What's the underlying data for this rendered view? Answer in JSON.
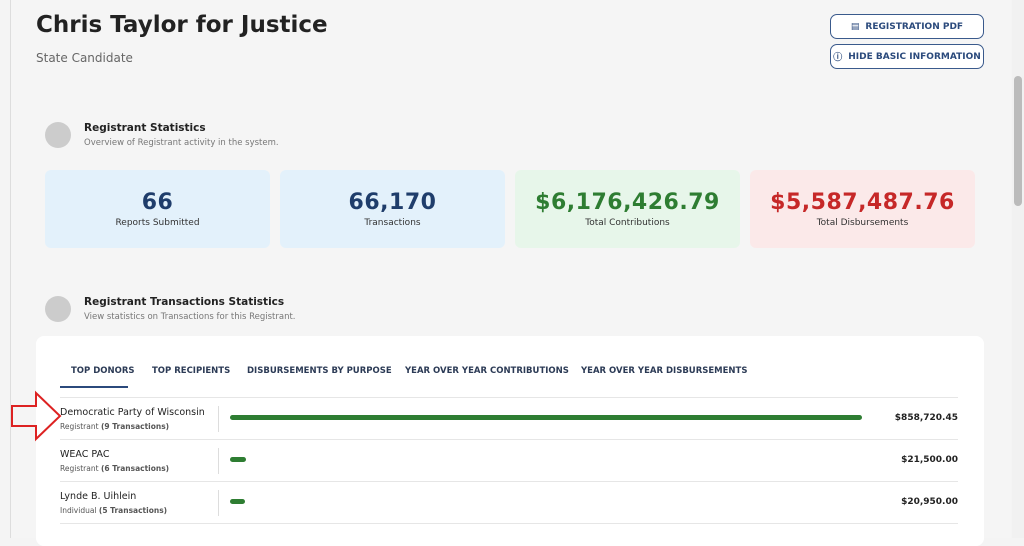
{
  "header": {
    "title": "Chris Taylor for Justice",
    "subtitle": "State Candidate",
    "buttons": [
      "REGISTRATION PDF",
      "HIDE BASIC INFORMATION"
    ]
  },
  "stats_section": {
    "title": "Registrant Statistics",
    "description": "Overview of Registrant activity in the system.",
    "cards": [
      {
        "value": "66",
        "label": "Reports Submitted"
      },
      {
        "value": "66,170",
        "label": "Transactions"
      },
      {
        "value": "$6,176,426.79",
        "label": "Total Contributions"
      },
      {
        "value": "$5,587,487.76",
        "label": "Total Disbursements"
      }
    ]
  },
  "transactions_section": {
    "title": "Registrant Transactions Statistics",
    "description": "View statistics on Transactions for this Registrant.",
    "tabs": [
      "TOP DONORS",
      "TOP RECIPIENTS",
      "DISBURSEMENTS BY PURPOSE",
      "YEAR OVER YEAR CONTRIBUTIONS",
      "YEAR OVER YEAR DISBURSEMENTS"
    ],
    "donors": [
      {
        "name": "Democratic Party of Wisconsin",
        "type": "Registrant",
        "count": "(9 Transactions)",
        "amount": 858720.45,
        "amount_label": "$858,720.45"
      },
      {
        "name": "WEAC PAC",
        "type": "Registrant",
        "count": "(6 Transactions)",
        "amount": 21500,
        "amount_label": "$21,500.00"
      },
      {
        "name": "Lynde B. Uihlein",
        "type": "Individual",
        "count": "(5 Transactions)",
        "amount": 20950,
        "amount_label": "$20,950.00"
      }
    ]
  }
}
